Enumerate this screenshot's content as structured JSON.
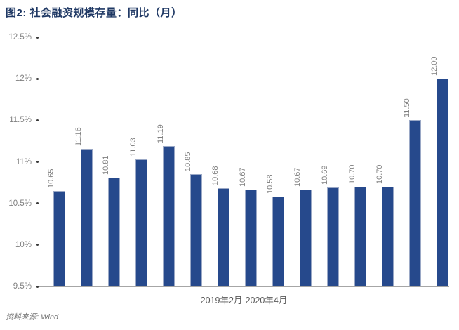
{
  "header": {
    "title": "图2: 社会融资规模存量：同比（月）"
  },
  "source_note": "资料来源: Wind",
  "colors": {
    "bar_fill": "#26498C",
    "bar_border": "#9AA8C6",
    "title": "#1F3864",
    "tick_label": "#7F7F7F",
    "axis_line": "#A6A6A6",
    "x_label": "#595959"
  },
  "chart_data": {
    "type": "bar",
    "title": "图2: 社会融资规模存量：同比（月）",
    "xlabel": "2019年2月-2020年4月",
    "ylabel": "",
    "values": [
      10.65,
      11.16,
      10.81,
      11.03,
      11.19,
      10.85,
      10.68,
      10.67,
      10.58,
      10.67,
      10.69,
      10.7,
      10.7,
      11.5,
      12.0
    ],
    "value_labels": [
      "10.65",
      "11.16",
      "10.81",
      "11.03",
      "11.19",
      "10.85",
      "10.68",
      "10.67",
      "10.58",
      "10.67",
      "10.69",
      "10.70",
      "10.70",
      "11.50",
      "12.00"
    ],
    "y_ticks": [
      {
        "label": "12.5%",
        "value": 12.5
      },
      {
        "label": "12%",
        "value": 12.0
      },
      {
        "label": "11.5%",
        "value": 11.5
      },
      {
        "label": "11%",
        "value": 11.0
      },
      {
        "label": "10.5%",
        "value": 10.5
      },
      {
        "label": "10%",
        "value": 10.0
      },
      {
        "label": "9.5%",
        "value": 9.5
      }
    ],
    "ylim": [
      9.5,
      12.5
    ],
    "grid": false,
    "legend": null
  }
}
